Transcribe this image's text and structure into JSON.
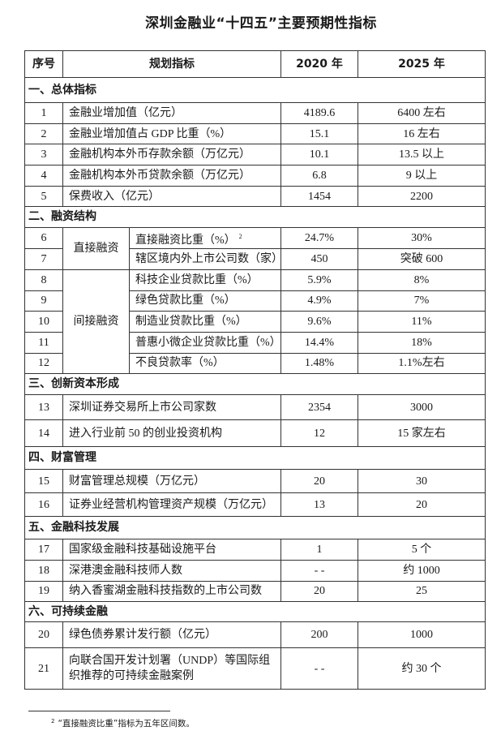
{
  "title": "深圳金融业“十四五”主要预期性指标",
  "headers": {
    "no": "序号",
    "indicator": "规划指标",
    "y2020": "2020 年",
    "y2025": "2025 年"
  },
  "sections": [
    {
      "title": "一、总体指标",
      "rows": [
        {
          "no": "1",
          "indicator": "金融业增加值（亿元）",
          "y2020": "4189.6",
          "y2025": "6400 左右"
        },
        {
          "no": "2",
          "indicator": "金融业增加值占 GDP 比重（%）",
          "y2020": "15.1",
          "y2025": "16 左右"
        },
        {
          "no": "3",
          "indicator": "金融机构本外币存款余额（万亿元）",
          "y2020": "10.1",
          "y2025": "13.5 以上"
        },
        {
          "no": "4",
          "indicator": "金融机构本外币贷款余额（万亿元）",
          "y2020": "6.8",
          "y2025": "9 以上"
        },
        {
          "no": "5",
          "indicator": "保费收入（亿元）",
          "y2020": "1454",
          "y2025": "2200"
        }
      ]
    },
    {
      "title": "二、融资结构",
      "groups": [
        {
          "name": "直接融资",
          "rows": [
            {
              "no": "6",
              "indicator": "直接融资比重（%）",
              "note": "2",
              "y2020": "24.7%",
              "y2025": "30%"
            },
            {
              "no": "7",
              "indicator": "辖区境内外上市公司数（家）",
              "y2020": "450",
              "y2025": "突破 600"
            }
          ]
        },
        {
          "name": "间接融资",
          "rows": [
            {
              "no": "8",
              "indicator": "科技企业贷款比重（%）",
              "y2020": "5.9%",
              "y2025": "8%"
            },
            {
              "no": "9",
              "indicator": "绿色贷款比重（%）",
              "y2020": "4.9%",
              "y2025": "7%"
            },
            {
              "no": "10",
              "indicator": "制造业贷款比重（%）",
              "y2020": "9.6%",
              "y2025": "11%"
            },
            {
              "no": "11",
              "indicator": "普惠小微企业贷款比重（%）",
              "y2020": "14.4%",
              "y2025": "18%"
            },
            {
              "no": "12",
              "indicator": "不良贷款率（%）",
              "y2020": "1.48%",
              "y2025": "1.1%左右"
            }
          ]
        }
      ]
    },
    {
      "title": "三、创新资本形成",
      "rows": [
        {
          "no": "13",
          "indicator": "深圳证券交易所上市公司家数",
          "y2020": "2354",
          "y2025": "3000"
        },
        {
          "no": "14",
          "indicator": "进入行业前 50 的创业投资机构",
          "y2020": "12",
          "y2025": "15 家左右"
        }
      ]
    },
    {
      "title": "四、财富管理",
      "rows": [
        {
          "no": "15",
          "indicator": "财富管理总规模（万亿元）",
          "y2020": "20",
          "y2025": "30"
        },
        {
          "no": "16",
          "indicator": "证券业经营机构管理资产规模（万亿元）",
          "y2020": "13",
          "y2025": "20"
        }
      ]
    },
    {
      "title": "五、金融科技发展",
      "rows": [
        {
          "no": "17",
          "indicator": "国家级金融科技基础设施平台",
          "y2020": "1",
          "y2025": "5 个"
        },
        {
          "no": "18",
          "indicator": "深港澳金融科技师人数",
          "y2020": "- -",
          "y2025": "约 1000"
        },
        {
          "no": "19",
          "indicator": "纳入香蜜湖金融科技指数的上市公司数",
          "y2020": "20",
          "y2025": "25"
        }
      ]
    },
    {
      "title": "六、可持续金融",
      "rows": [
        {
          "no": "20",
          "indicator": "绿色债券累计发行额（亿元）",
          "y2020": "200",
          "y2025": "1000"
        },
        {
          "no": "21",
          "indicator": "向联合国开发计划署（UNDP）等国际组织推荐的可持续金融案例",
          "y2020": "- -",
          "y2025": "约 30 个"
        }
      ]
    }
  ],
  "footnote": {
    "mark": "2",
    "text": "“直接融资比重”指标为五年区间数。"
  }
}
